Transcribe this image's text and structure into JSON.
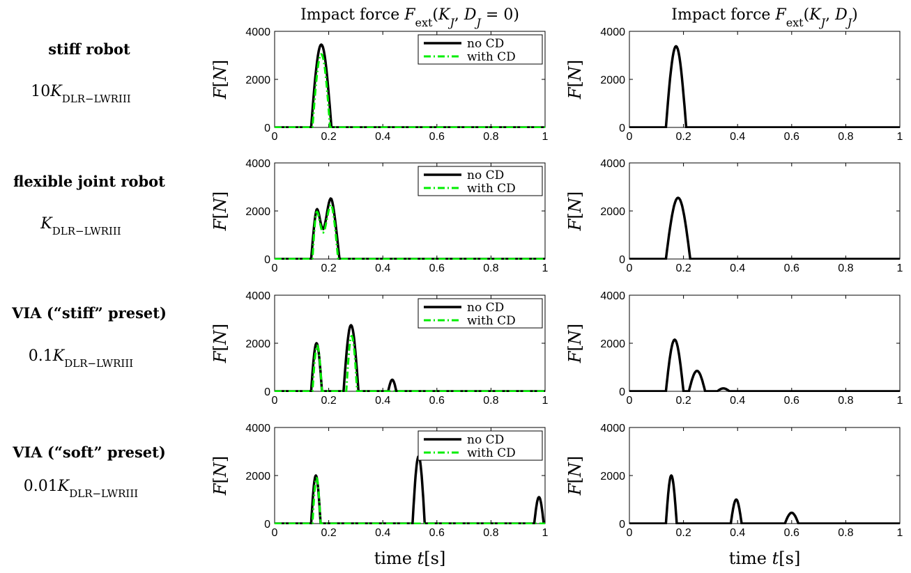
{
  "columns": [
    {
      "title_html": "Impact force <tspan font-style='italic'>F</tspan><tspan baseline-shift='sub' font-size='16'>ext</tspan>(<tspan font-style='italic'>K</tspan><tspan baseline-shift='sub' font-size='16' font-style='italic'>J</tspan>, <tspan font-style='italic'>D</tspan><tspan baseline-shift='sub' font-size='16' font-style='italic'>J</tspan> = 0)"
    },
    {
      "title_html": "Impact force <tspan font-style='italic'>F</tspan><tspan baseline-shift='sub' font-size='16'>ext</tspan>(<tspan font-style='italic'>K</tspan><tspan baseline-shift='sub' font-size='16' font-style='italic'>J</tspan>, <tspan font-style='italic'>D</tspan><tspan baseline-shift='sub' font-size='16' font-style='italic'>J</tspan>)"
    }
  ],
  "rows": [
    {
      "label": "stiff robot",
      "stiffness_html": "10<tspan font-style='italic'>K</tspan><tspan baseline-shift='sub' font-size='15'>DLR−LWRIII</tspan>"
    },
    {
      "label": "flexible joint robot",
      "stiffness_html": "<tspan font-style='italic'>K</tspan><tspan baseline-shift='sub' font-size='15'>DLR−LWRIII</tspan>"
    },
    {
      "label": "VIA (“stiff” preset)",
      "stiffness_html": "0.1<tspan font-style='italic'>K</tspan><tspan baseline-shift='sub' font-size='15'>DLR−LWRIII</tspan>"
    },
    {
      "label": "VIA (“soft” preset)",
      "stiffness_html": "0.01<tspan font-style='italic'>K</tspan><tspan baseline-shift='sub' font-size='15'>DLR−LWRIII</tspan>"
    }
  ],
  "ylabel_html": "<tspan font-style='italic'>F</tspan>[<tspan font-style='italic'>N</tspan>]",
  "xlabel_html": "time <tspan font-style='italic'>t</tspan>[s]",
  "legend": {
    "no_cd": "no CD",
    "with_cd": "with CD"
  },
  "colors": {
    "no_cd": "#000000",
    "with_cd": "#00ee00"
  },
  "chart_data": [
    {
      "type": "line",
      "row": 0,
      "col": 0,
      "xlim": [
        0,
        1
      ],
      "ylim": [
        0,
        4000
      ],
      "xticks": [
        "0",
        "0.2",
        "0.4",
        "0.6",
        "0.8",
        "1"
      ],
      "yticks": [
        "0",
        "2000",
        "4000"
      ],
      "legend": true,
      "series": [
        {
          "name": "no CD",
          "pulses": [
            [
              0.135,
              0.21,
              3450
            ]
          ]
        },
        {
          "name": "with CD",
          "pulses": [
            [
              0.14,
              0.205,
              3050
            ]
          ]
        }
      ]
    },
    {
      "type": "line",
      "row": 0,
      "col": 1,
      "xlim": [
        0,
        1
      ],
      "ylim": [
        0,
        4000
      ],
      "xticks": [
        "0",
        "0.2",
        "0.4",
        "0.6",
        "0.8",
        "1"
      ],
      "yticks": [
        "0",
        "2000",
        "4000"
      ],
      "legend": false,
      "series": [
        {
          "pulses": [
            [
              0.135,
              0.21,
              3380
            ]
          ]
        }
      ]
    },
    {
      "type": "line",
      "row": 1,
      "col": 0,
      "xlim": [
        0,
        1
      ],
      "ylim": [
        0,
        4000
      ],
      "xticks": [
        "0",
        "0.2",
        "0.4",
        "0.6",
        "0.8",
        "1"
      ],
      "yticks": [
        "0",
        "2000",
        "4000"
      ],
      "legend": true,
      "series": [
        {
          "name": "no CD",
          "pulses": [
            [
              0.135,
              0.24,
              2500
            ]
          ],
          "points": [
            [
              0.135,
              0
            ],
            [
              0.155,
              2050
            ],
            [
              0.18,
              1250
            ],
            [
              0.21,
              2500
            ],
            [
              0.24,
              0
            ]
          ]
        },
        {
          "name": "with CD",
          "pulses": [
            [
              0.14,
              0.235,
              2250
            ]
          ],
          "points": [
            [
              0.14,
              0
            ],
            [
              0.155,
              1950
            ],
            [
              0.18,
              1100
            ],
            [
              0.21,
              2250
            ],
            [
              0.235,
              0
            ]
          ]
        }
      ]
    },
    {
      "type": "line",
      "row": 1,
      "col": 1,
      "xlim": [
        0,
        1
      ],
      "ylim": [
        0,
        4000
      ],
      "xticks": [
        "0",
        "0.2",
        "0.4",
        "0.6",
        "0.8",
        "1"
      ],
      "yticks": [
        "0",
        "2000",
        "4000"
      ],
      "legend": false,
      "series": [
        {
          "pulses": [
            [
              0.135,
              0.225,
              2550
            ]
          ]
        }
      ]
    },
    {
      "type": "line",
      "row": 2,
      "col": 0,
      "xlim": [
        0,
        1
      ],
      "ylim": [
        0,
        4000
      ],
      "xticks": [
        "0",
        "0.2",
        "0.4",
        "0.6",
        "0.8",
        "1"
      ],
      "yticks": [
        "0",
        "2000",
        "4000"
      ],
      "legend": true,
      "series": [
        {
          "name": "no CD",
          "pulses": [
            [
              0.135,
              0.175,
              2000
            ],
            [
              0.255,
              0.31,
              2750
            ],
            [
              0.42,
              0.45,
              480
            ]
          ]
        },
        {
          "name": "with CD",
          "pulses": [
            [
              0.14,
              0.175,
              1900
            ],
            [
              0.265,
              0.305,
              2300
            ]
          ]
        }
      ]
    },
    {
      "type": "line",
      "row": 2,
      "col": 1,
      "xlim": [
        0,
        1
      ],
      "ylim": [
        0,
        4000
      ],
      "xticks": [
        "0",
        "0.2",
        "0.4",
        "0.6",
        "0.8",
        "1"
      ],
      "yticks": [
        "0",
        "2000",
        "4000"
      ],
      "legend": false,
      "series": [
        {
          "pulses": [
            [
              0.135,
              0.2,
              2150
            ],
            [
              0.22,
              0.28,
              850
            ],
            [
              0.325,
              0.37,
              120
            ]
          ]
        }
      ]
    },
    {
      "type": "line",
      "row": 3,
      "col": 0,
      "xlim": [
        0,
        1
      ],
      "ylim": [
        0,
        4000
      ],
      "xticks": [
        "0",
        "0.2",
        "0.4",
        "0.6",
        "0.8",
        "1"
      ],
      "yticks": [
        "0",
        "2000",
        "4000"
      ],
      "legend": true,
      "series": [
        {
          "name": "no CD",
          "pulses": [
            [
              0.135,
              0.17,
              2000
            ],
            [
              0.51,
              0.555,
              2800
            ],
            [
              0.96,
              0.995,
              1100
            ]
          ]
        },
        {
          "name": "with CD",
          "pulses": [
            [
              0.14,
              0.17,
              1900
            ]
          ]
        }
      ]
    },
    {
      "type": "line",
      "row": 3,
      "col": 1,
      "xlim": [
        0,
        1
      ],
      "ylim": [
        0,
        4000
      ],
      "xticks": [
        "0",
        "0.2",
        "0.4",
        "0.6",
        "0.8",
        "1"
      ],
      "yticks": [
        "0",
        "2000",
        "4000"
      ],
      "legend": false,
      "series": [
        {
          "pulses": [
            [
              0.135,
              0.175,
              2000
            ],
            [
              0.375,
              0.415,
              1000
            ],
            [
              0.575,
              0.625,
              450
            ]
          ]
        }
      ]
    }
  ]
}
